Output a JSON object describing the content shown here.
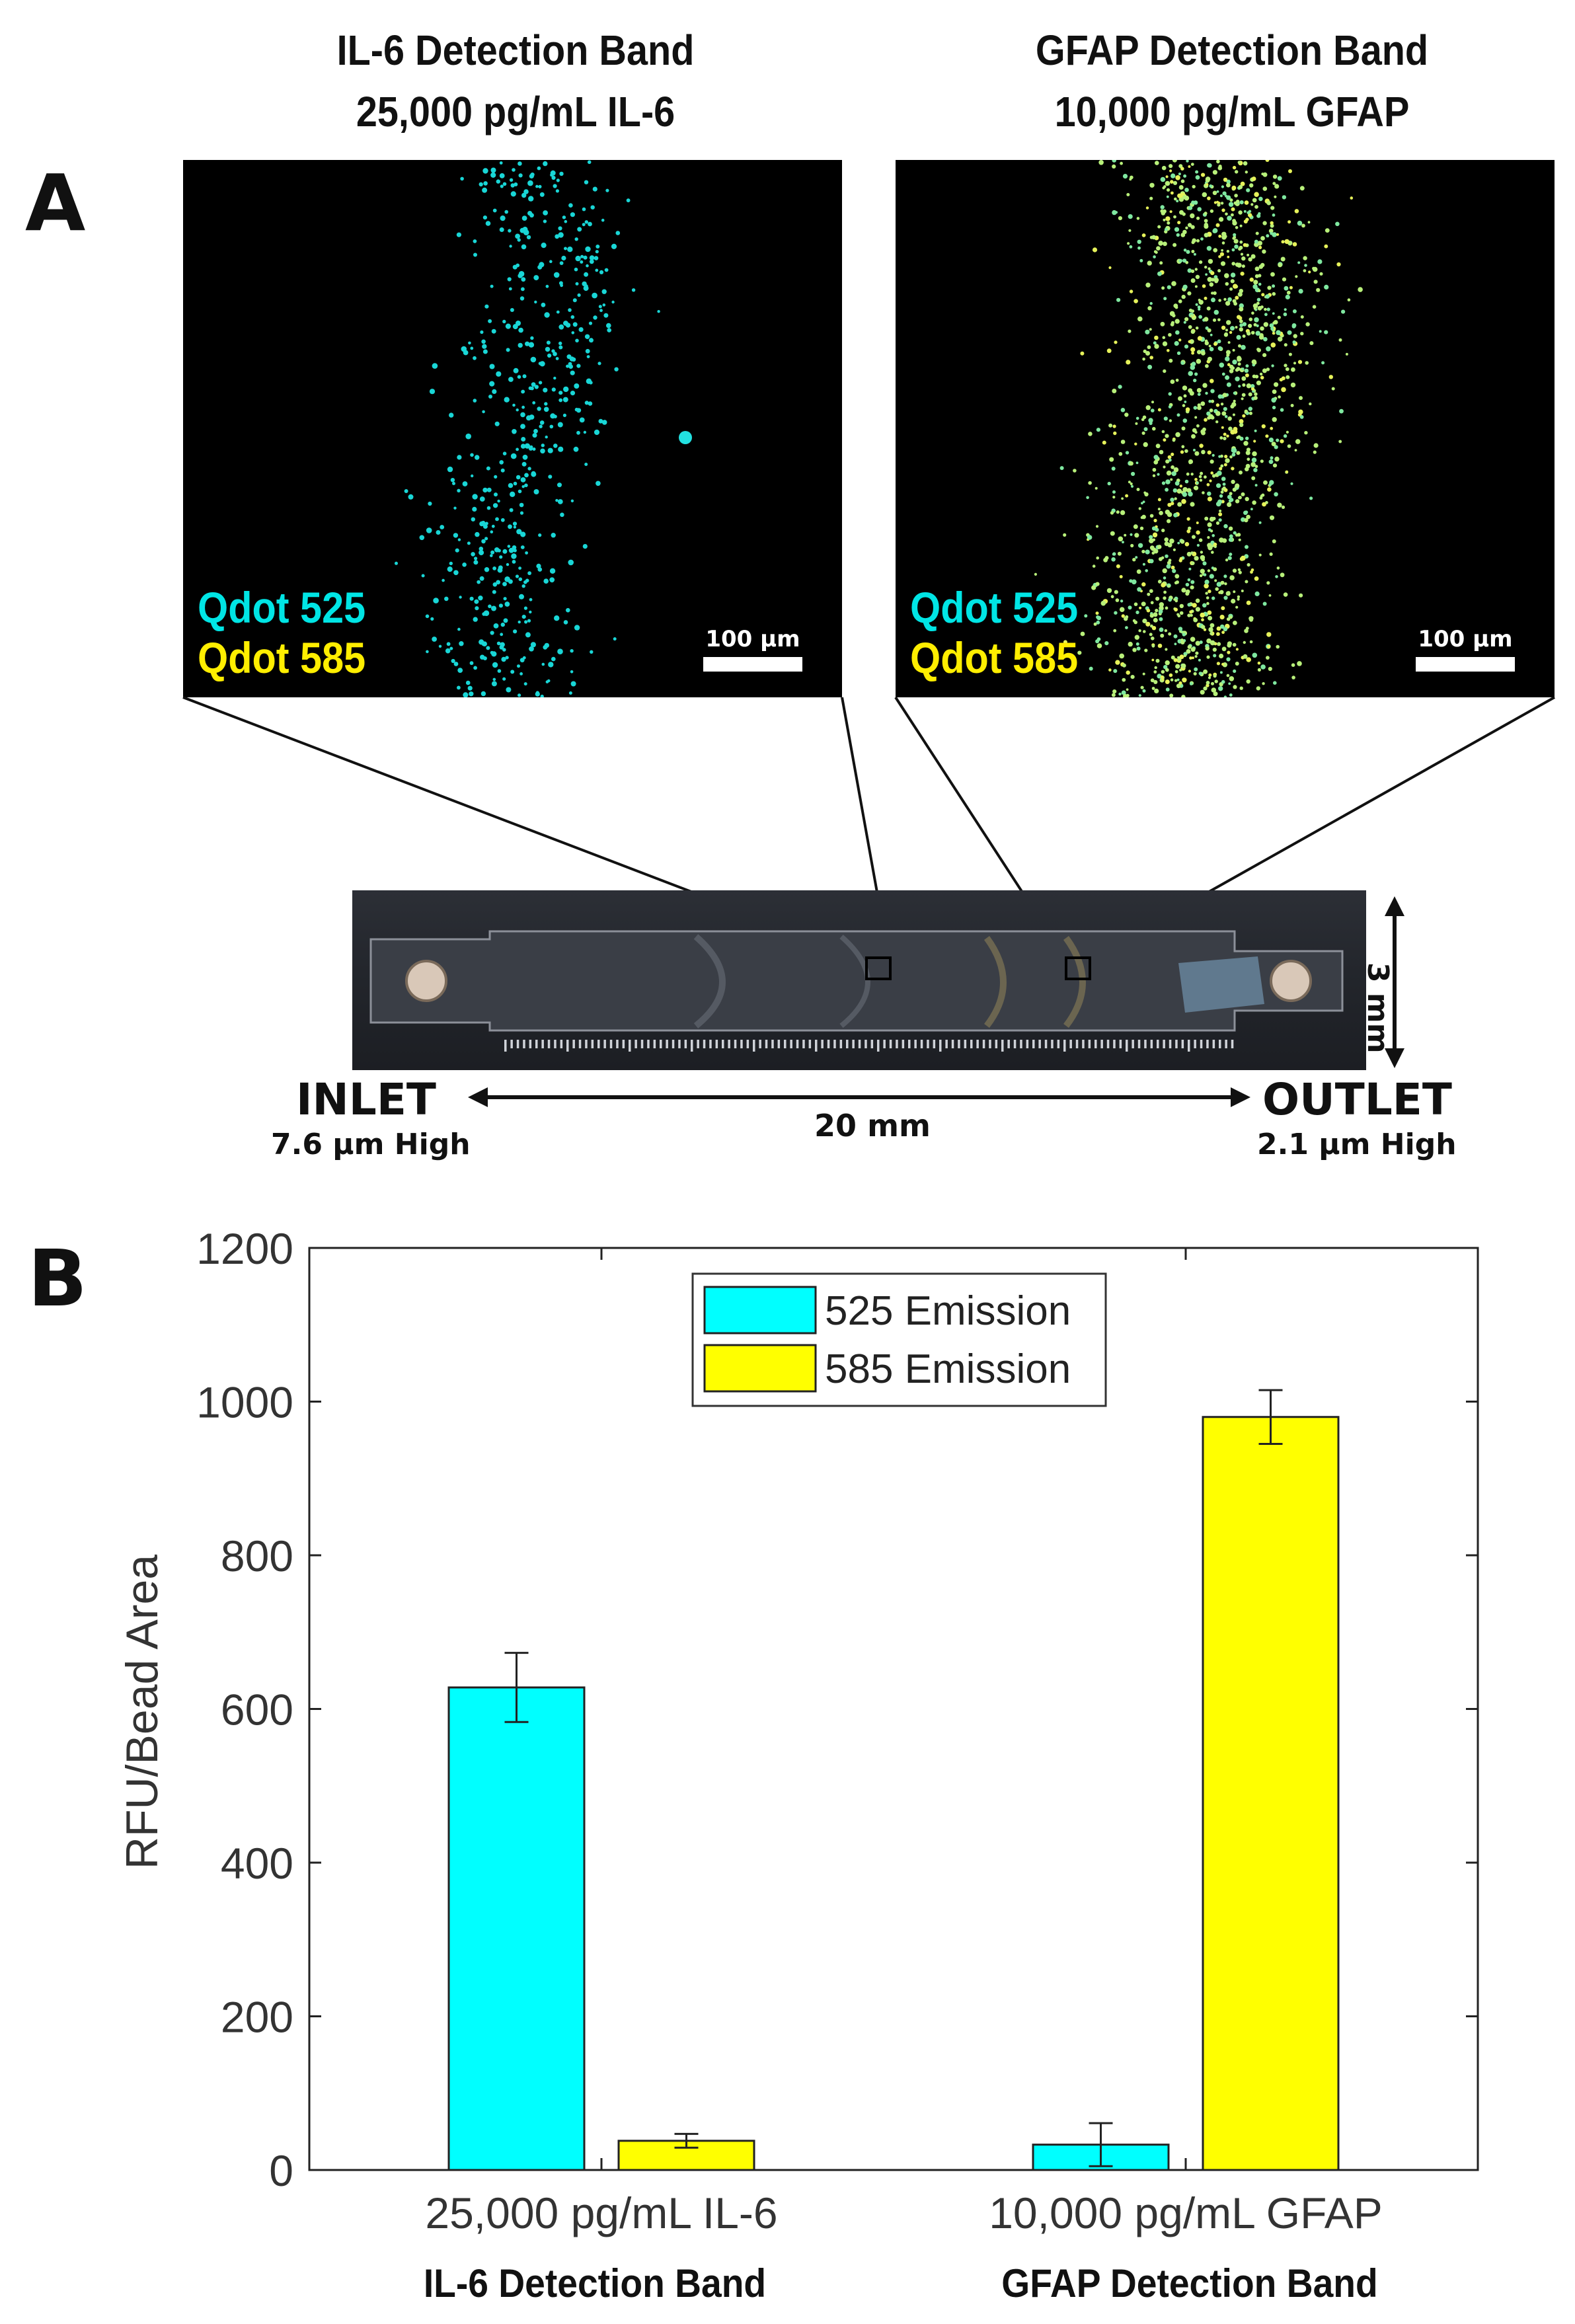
{
  "panel_a": {
    "letter": "A",
    "left_image": {
      "title_line1": "IL-6 Detection Band",
      "title_line2": "25,000 pg/mL IL-6",
      "legend_525": "Qdot 525",
      "legend_585": "Qdot 585",
      "scale_bar": "100 µm"
    },
    "right_image": {
      "title_line1": "GFAP Detection Band",
      "title_line2": "10,000 pg/mL GFAP",
      "legend_525": "Qdot 525",
      "legend_585": "Qdot 585",
      "scale_bar": "100 µm"
    },
    "device": {
      "inlet_label": "INLET",
      "inlet_height": "7.6 µm High",
      "outlet_label": "OUTLET",
      "outlet_height": "2.1 µm High",
      "length_label": "20 mm",
      "width_label": "3 mm"
    }
  },
  "panel_b": {
    "letter": "B",
    "category_sublabels": [
      "IL-6 Detection Band",
      "GFAP Detection Band"
    ]
  },
  "colors": {
    "qdot_525": "#00ffff",
    "qdot_585": "#ffff00"
  },
  "chart_data": {
    "type": "bar",
    "categories": [
      "25,000 pg/mL IL-6",
      "10,000 pg/mL GFAP"
    ],
    "series": [
      {
        "name": "525 Emission",
        "color": "#00ffff",
        "values": [
          628,
          33
        ],
        "error": [
          45,
          28
        ]
      },
      {
        "name": "585 Emission",
        "color": "#ffff00",
        "values": [
          38,
          980
        ],
        "error": [
          9,
          35
        ]
      }
    ],
    "xlabel": "",
    "ylabel": "RFU/Bead Area",
    "ylim": [
      0,
      1200
    ],
    "yticks": [
      0,
      200,
      400,
      600,
      800,
      1000,
      1200
    ],
    "legend_position": "top-center",
    "grid": false
  }
}
